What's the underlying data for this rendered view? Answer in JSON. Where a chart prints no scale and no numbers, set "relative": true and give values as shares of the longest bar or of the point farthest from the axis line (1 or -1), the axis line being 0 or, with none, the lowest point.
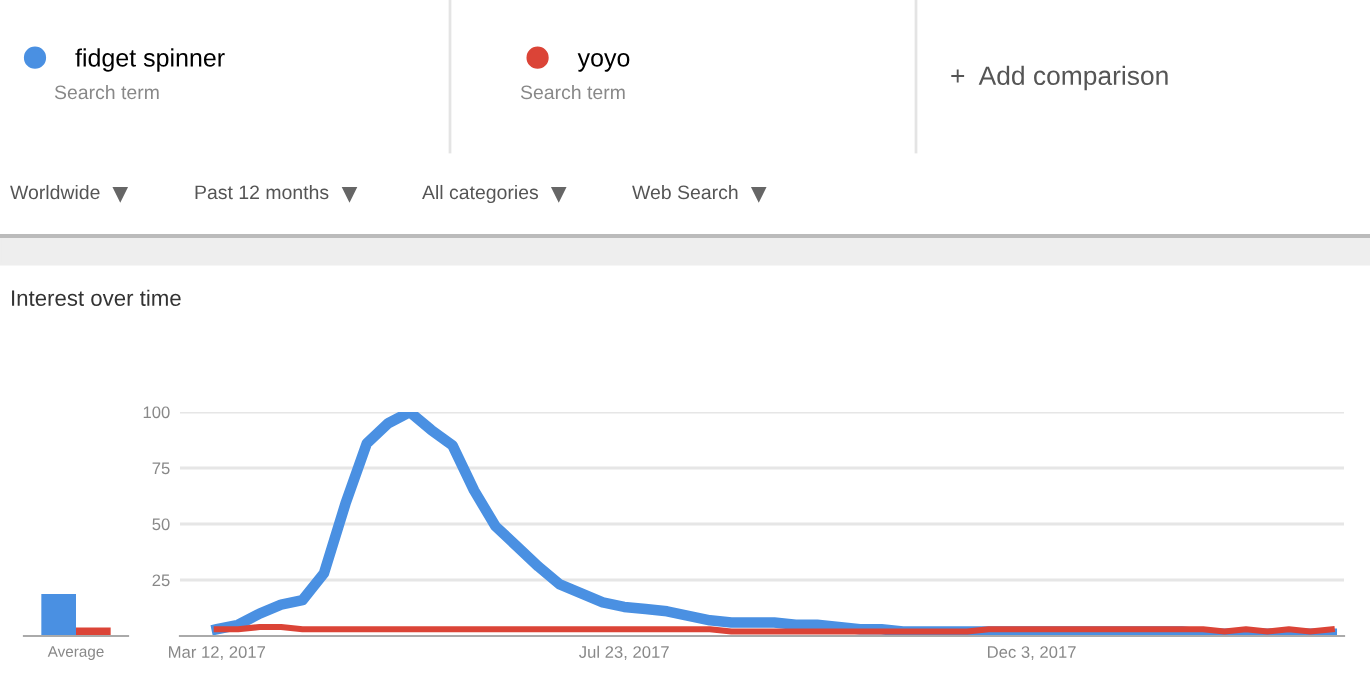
{
  "chart_data": [
    {
      "type": "line",
      "title": "Interest over time",
      "annotations": [
        "Search term",
        "Search term",
        "+  Add comparison",
        "Worldwide",
        "Past 12 months",
        "All categories",
        "Web Search"
      ],
      "x": [
        "2017-03-12",
        "2017-03-19",
        "2017-03-26",
        "2017-04-02",
        "2017-04-09",
        "2017-04-16",
        "2017-04-23",
        "2017-04-30",
        "2017-05-07",
        "2017-05-14",
        "2017-05-21",
        "2017-05-28",
        "2017-06-04",
        "2017-06-11",
        "2017-06-18",
        "2017-06-25",
        "2017-07-02",
        "2017-07-09",
        "2017-07-16",
        "2017-07-23",
        "2017-07-30",
        "2017-08-06",
        "2017-08-13",
        "2017-08-20",
        "2017-08-27",
        "2017-09-03",
        "2017-09-10",
        "2017-09-17",
        "2017-09-24",
        "2017-10-01",
        "2017-10-08",
        "2017-10-15",
        "2017-10-22",
        "2017-10-29",
        "2017-11-05",
        "2017-11-12",
        "2017-11-19",
        "2017-11-26",
        "2017-12-03",
        "2017-12-10",
        "2017-12-17",
        "2017-12-24",
        "2017-12-31",
        "2018-01-07",
        "2018-01-14",
        "2018-01-21",
        "2018-01-28",
        "2018-02-04",
        "2018-02-11",
        "2018-02-18",
        "2018-02-25",
        "2018-03-04",
        "2018-03-11"
      ],
      "xlim": [
        "2017-02-28",
        "2018-03-15"
      ],
      "xticks": [
        {
          "value": "2017-03-12",
          "label": "Mar 12, 2017"
        },
        {
          "value": "2017-07-23",
          "label": "Jul 23, 2017"
        },
        {
          "value": "2017-12-03",
          "label": "Dec 3, 2017"
        }
      ],
      "ylim": [
        0,
        100
      ],
      "yticks": [
        25,
        50,
        75,
        100
      ],
      "grid": "y",
      "legend": "top",
      "marker": "none",
      "line_style": "solid",
      "series": [
        {
          "name": "fidget spinner",
          "color": "#4a90e2",
          "values": [
            3,
            5,
            10,
            14,
            16,
            28,
            59,
            86,
            95,
            100,
            92,
            85,
            65,
            49,
            40,
            31,
            23,
            19,
            15,
            13,
            12,
            11,
            9,
            7,
            6,
            6,
            6,
            5,
            5,
            4,
            3,
            3,
            2,
            2,
            2,
            2,
            2,
            2,
            2,
            2,
            2,
            2,
            2,
            2,
            2,
            2,
            1,
            1,
            1,
            1,
            1,
            1,
            1
          ]
        },
        {
          "name": "yoyo",
          "color": "#db4437",
          "values": [
            3,
            3,
            4,
            4,
            3,
            3,
            3,
            3,
            3,
            3,
            3,
            3,
            3,
            3,
            3,
            3,
            3,
            3,
            3,
            3,
            3,
            3,
            3,
            3,
            2,
            2,
            2,
            2,
            2,
            2,
            2,
            2,
            2,
            2,
            2,
            2,
            3,
            3,
            3,
            3,
            3,
            3,
            3,
            3,
            3,
            3,
            3,
            2,
            3,
            2,
            3,
            2,
            3
          ]
        }
      ]
    },
    {
      "type": "bar",
      "relative": true,
      "categories": [
        "Average"
      ],
      "series": [
        {
          "color": "#4a90e2",
          "values": [
            1
          ]
        },
        {
          "color": "#db4437",
          "values": [
            0.2
          ]
        }
      ]
    }
  ]
}
